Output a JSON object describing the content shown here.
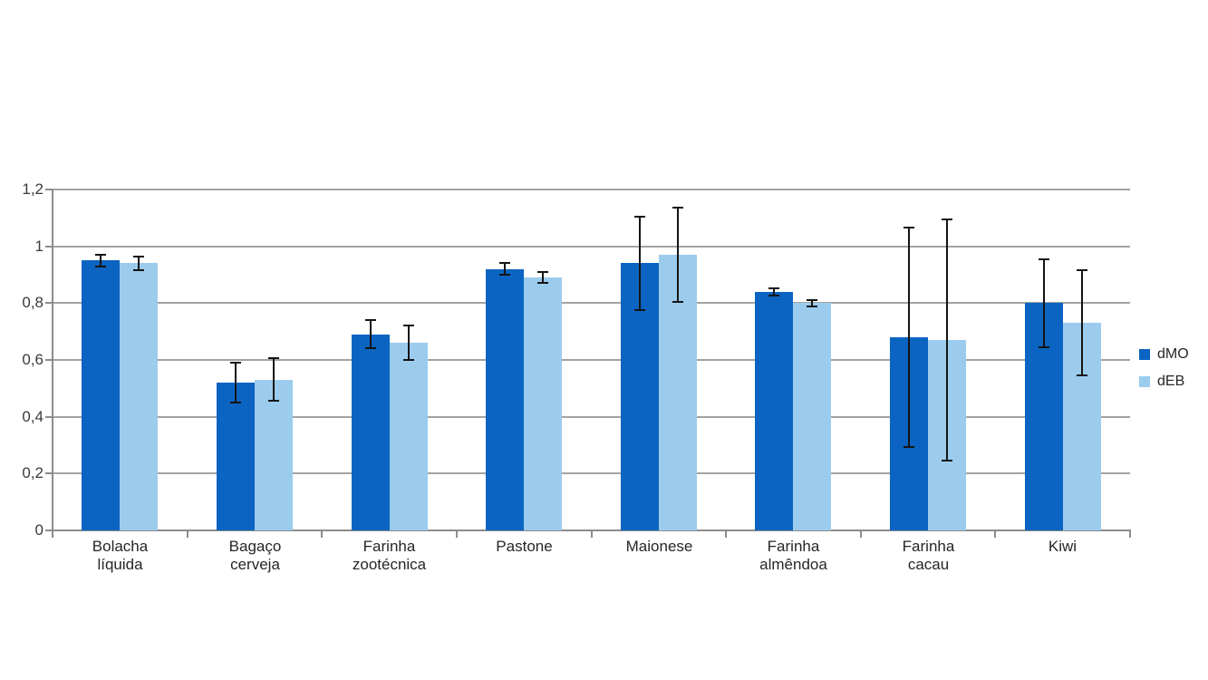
{
  "chart_data": {
    "type": "bar",
    "title": "",
    "xlabel": "",
    "ylabel": "",
    "categories": [
      "Bolacha\nlíquida",
      "Bagaço\ncerveja",
      "Farinha\nzootécnica",
      "Pastone",
      "Maionese",
      "Farinha\nalmêndoa",
      "Farinha\ncacau",
      "Kiwi"
    ],
    "series": [
      {
        "name": "dMO",
        "color": "#0B64C1",
        "values": [
          0.95,
          0.52,
          0.69,
          0.92,
          0.94,
          0.84,
          0.68,
          0.8
        ],
        "errors": [
          0.02,
          0.07,
          0.05,
          0.02,
          0.165,
          0.012,
          0.385,
          0.155
        ]
      },
      {
        "name": "dEB",
        "color": "#9CCCED",
        "values": [
          0.94,
          0.53,
          0.66,
          0.89,
          0.97,
          0.8,
          0.67,
          0.73
        ],
        "errors": [
          0.025,
          0.075,
          0.06,
          0.02,
          0.165,
          0.012,
          0.425,
          0.185
        ]
      }
    ],
    "y_axis": {
      "min": 0,
      "max": 1.2,
      "tick_values": [
        0,
        0.2,
        0.4,
        0.6,
        0.8,
        1.0,
        1.2
      ],
      "tick_labels": [
        "0",
        "0,2",
        "0,4",
        "0,6",
        "0,8",
        "1",
        "1,2"
      ],
      "decimal_separator": ","
    },
    "grid": true,
    "legend_position": "right",
    "error_bar_color": "#141414",
    "axis_color": "#8c8c8c",
    "gridline_color": "#a2a2a2"
  },
  "legend": {
    "items": [
      {
        "label": "dMO"
      },
      {
        "label": "dEB"
      }
    ]
  }
}
